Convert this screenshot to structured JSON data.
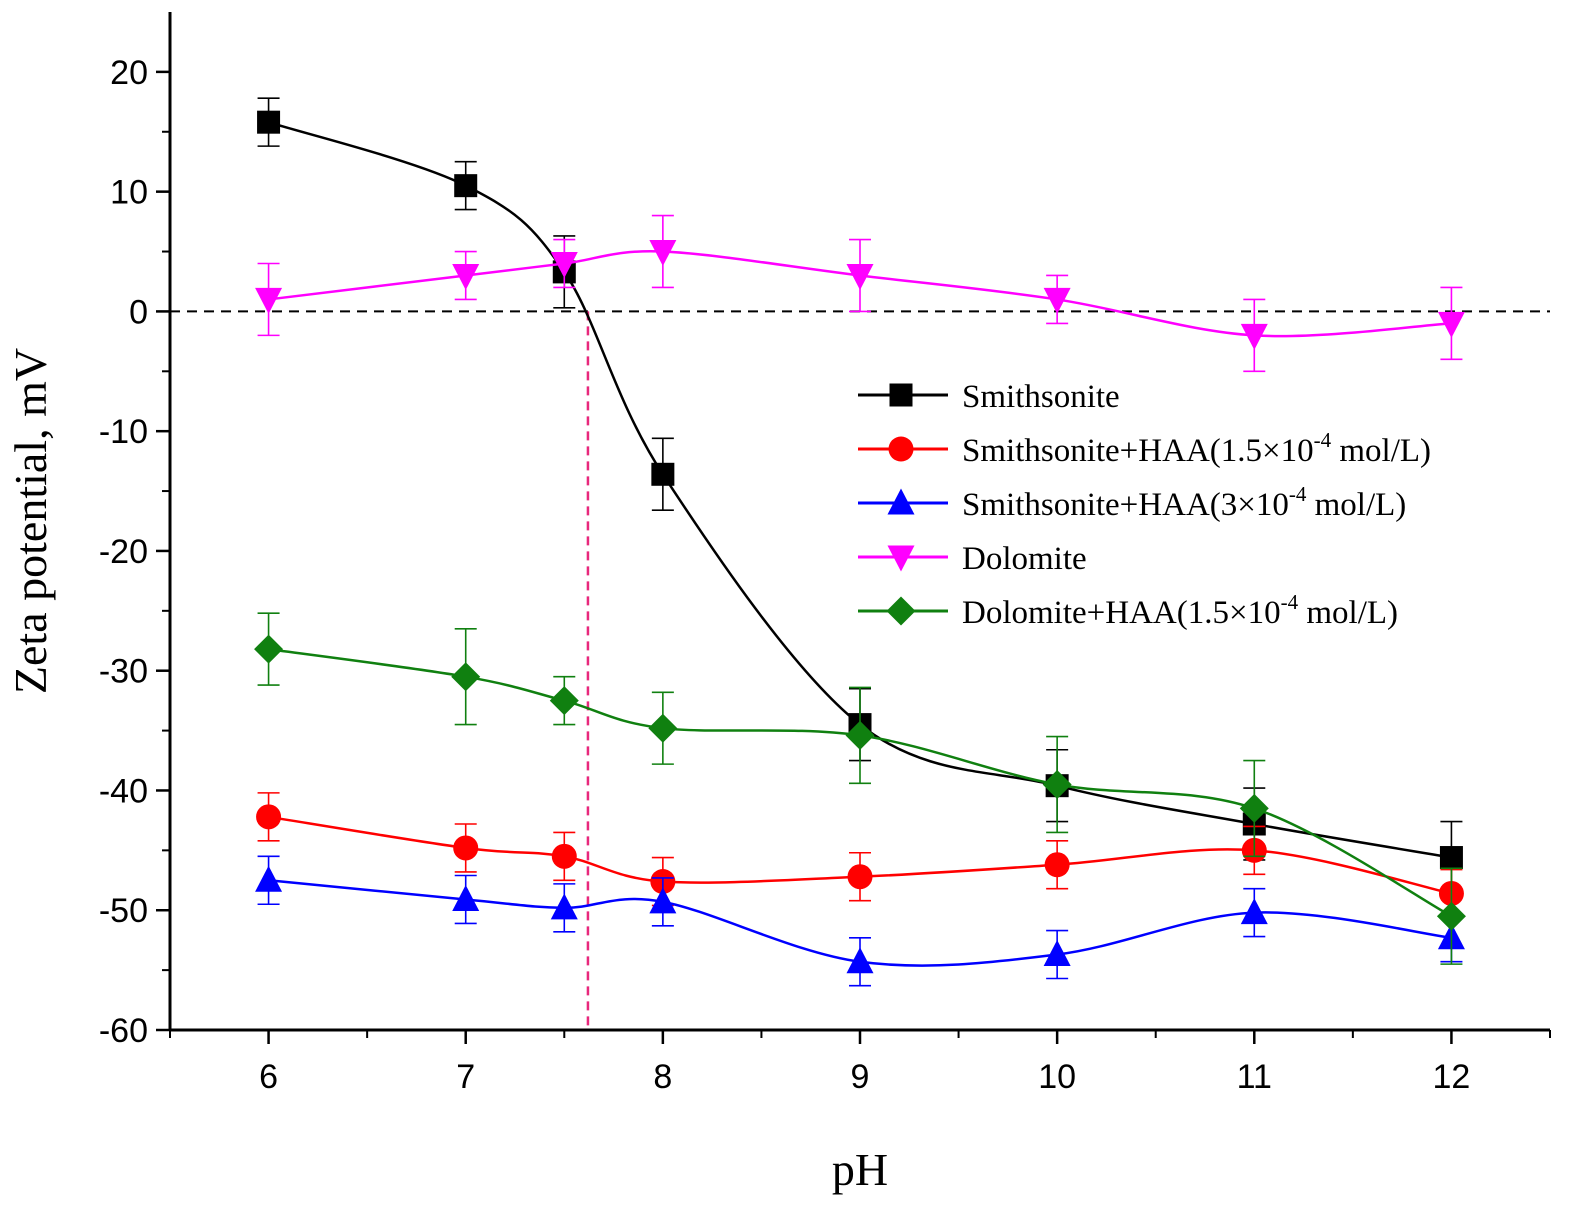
{
  "chart_data": {
    "type": "line",
    "title": "",
    "xlabel": "pH",
    "ylabel": "Zeta potential, mV",
    "xlim": [
      5.5,
      12.5
    ],
    "ylim": [
      -60,
      25
    ],
    "x_ticks": [
      6,
      7,
      8,
      9,
      10,
      11,
      12
    ],
    "x_tick_labels": [
      "6",
      "7",
      "8",
      "9",
      "10",
      "11",
      "12"
    ],
    "y_ticks": [
      20,
      10,
      0,
      -10,
      -20,
      -30,
      -40,
      -50,
      -60
    ],
    "y_tick_labels": [
      "20",
      "10",
      "0",
      "-10",
      "-20",
      "-30",
      "-40",
      "-50",
      "-60"
    ],
    "zero_line": {
      "y": 0,
      "style": "dashed",
      "color": "#000000"
    },
    "reference_line": {
      "x": 7.62,
      "style": "dashed",
      "color": "#e8287c"
    },
    "legend_position": "center-right",
    "series": [
      {
        "name": "Smithsonite",
        "legend_main": "Smithsonite",
        "legend_sup": "",
        "legend_tail": "",
        "color": "#000000",
        "marker": "square",
        "x": [
          6,
          7,
          7.5,
          8,
          9,
          10,
          11,
          12
        ],
        "y": [
          15.8,
          10.5,
          3.3,
          -13.6,
          -34.5,
          -39.6,
          -42.8,
          -45.6
        ],
        "err": [
          2.0,
          2.0,
          3.0,
          3.0,
          3.0,
          3.0,
          3.0,
          3.0
        ]
      },
      {
        "name": "Smithsonite+HAA(1.5×10-4 mol/L)",
        "legend_main": "Smithsonite+HAA(1.5×10",
        "legend_sup": "-4",
        "legend_tail": " mol/L)",
        "color": "#ff0000",
        "marker": "circle",
        "x": [
          6,
          7,
          7.5,
          8,
          9,
          10,
          11,
          12
        ],
        "y": [
          -42.2,
          -44.8,
          -45.5,
          -47.6,
          -47.2,
          -46.2,
          -45.0,
          -48.6
        ],
        "err": [
          2.0,
          2.0,
          2.0,
          2.0,
          2.0,
          2.0,
          2.0,
          2.0
        ]
      },
      {
        "name": "Smithsonite+HAA(3×10-4 mol/L)",
        "legend_main": "Smithsonite+HAA(3×10",
        "legend_sup": "-4",
        "legend_tail": " mol/L)",
        "color": "#0000ff",
        "marker": "triangle-up",
        "x": [
          6,
          7,
          7.5,
          8,
          9,
          10,
          11,
          12
        ],
        "y": [
          -47.5,
          -49.1,
          -49.8,
          -49.3,
          -54.3,
          -53.7,
          -50.2,
          -52.3
        ],
        "err": [
          2.0,
          2.0,
          2.0,
          2.0,
          2.0,
          2.0,
          2.0,
          2.0
        ]
      },
      {
        "name": "Dolomite",
        "legend_main": "Dolomite",
        "legend_sup": "",
        "legend_tail": "",
        "color": "#ff00ff",
        "marker": "triangle-down",
        "x": [
          6,
          7,
          7.5,
          8,
          9,
          10,
          11,
          12
        ],
        "y": [
          1.0,
          3.0,
          4.0,
          5.0,
          3.0,
          1.0,
          -2.0,
          -1.0
        ],
        "err": [
          3.0,
          2.0,
          2.0,
          3.0,
          3.0,
          2.0,
          3.0,
          3.0
        ]
      },
      {
        "name": "Dolomite+HAA(1.5×10-4 mol/L)",
        "legend_main": "Dolomite+HAA(1.5×10",
        "legend_sup": "-4",
        "legend_tail": " mol/L)",
        "color": "#108010",
        "marker": "diamond",
        "x": [
          6,
          7,
          7.5,
          8,
          9,
          10,
          11,
          12
        ],
        "y": [
          -28.2,
          -30.5,
          -32.5,
          -34.8,
          -35.4,
          -39.5,
          -41.5,
          -50.5
        ],
        "err": [
          3.0,
          4.0,
          2.0,
          3.0,
          4.0,
          4.0,
          4.0,
          4.0
        ]
      }
    ]
  }
}
